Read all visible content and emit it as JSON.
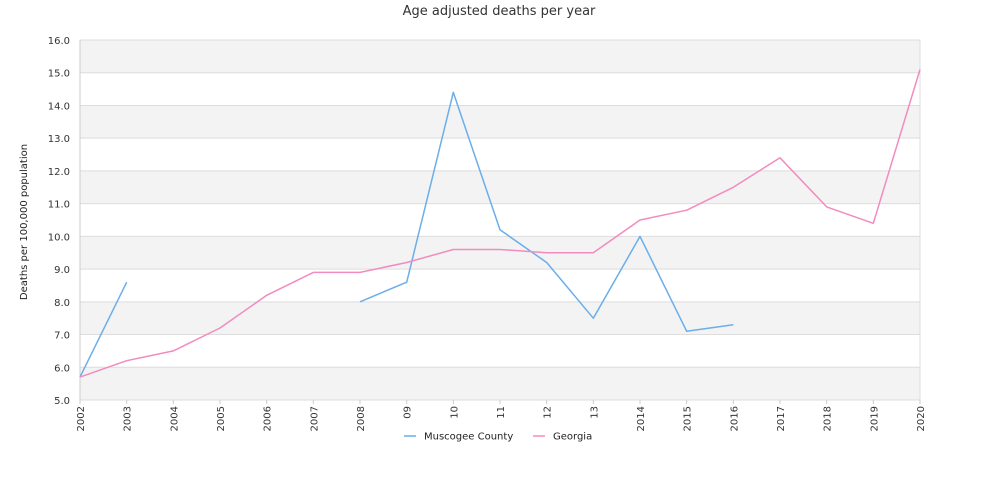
{
  "chart_data": {
    "type": "line",
    "title": "Age adjusted deaths per year",
    "xlabel": "",
    "ylabel": "Deaths per 100,000 population",
    "categories": [
      "2002",
      "2003",
      "2004",
      "2005",
      "2006",
      "2007",
      "2008",
      "09",
      "10",
      "11",
      "12",
      "13",
      "2014",
      "2015",
      "2016",
      "2017",
      "2018",
      "2019",
      "2020"
    ],
    "ylim": [
      5.0,
      16.0
    ],
    "yticks": [
      "5.0",
      "6.0",
      "7.0",
      "8.0",
      "9.0",
      "10.0",
      "11.0",
      "12.0",
      "13.0",
      "14.0",
      "15.0",
      "16.0"
    ],
    "grid": "horizontal bands",
    "legend_position": "bottom",
    "series": [
      {
        "name": "Muscogee County",
        "color": "#6aaeea",
        "values": [
          5.7,
          8.6,
          null,
          null,
          null,
          null,
          8.0,
          8.6,
          14.4,
          10.2,
          9.2,
          7.5,
          10.0,
          7.1,
          7.3,
          null,
          null,
          null,
          null
        ]
      },
      {
        "name": "Georgia",
        "color": "#f28bbf",
        "values": [
          5.7,
          6.2,
          6.5,
          7.2,
          8.2,
          8.9,
          8.9,
          9.2,
          9.6,
          9.6,
          9.5,
          9.5,
          10.5,
          10.8,
          11.5,
          12.4,
          10.9,
          10.4,
          15.1
        ]
      }
    ]
  }
}
